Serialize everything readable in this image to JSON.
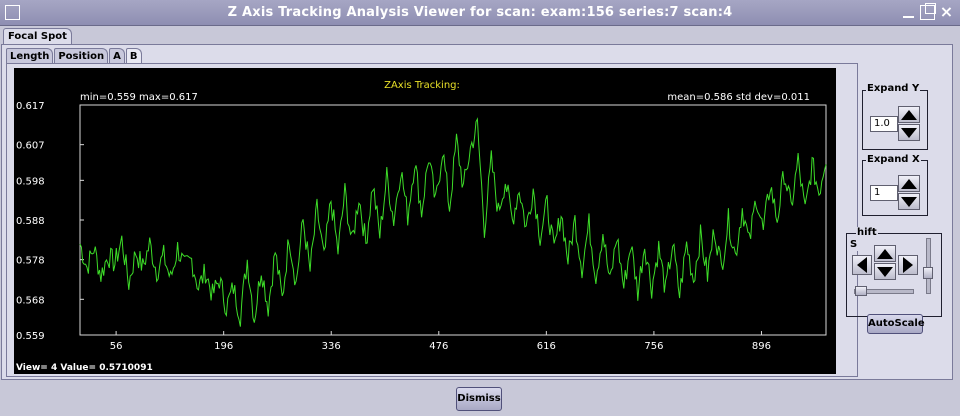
{
  "window": {
    "title": "Z Axis Tracking Analysis Viewer for scan:  exam:156 series:7 scan:4"
  },
  "outer_tabs": [
    {
      "label": "Focal Spot"
    }
  ],
  "inner_tabs": [
    {
      "label": "Length"
    },
    {
      "label": "Position"
    },
    {
      "label": "A"
    },
    {
      "label": "B"
    }
  ],
  "plot": {
    "title": "ZAxis Tracking:",
    "stats_left": "min=0.559 max=0.617",
    "stats_right": "mean=0.586 std dev=0.011",
    "readout": "View= 4  Value= 0.5710091",
    "colors": {
      "background": "#000000",
      "trace": "#3ddc28",
      "title": "#e8e028",
      "text": "#ffffff",
      "frame": "#d8d8d8"
    }
  },
  "controls": {
    "expand_y": {
      "label": "Expand Y",
      "value": "1.0"
    },
    "expand_x": {
      "label": "Expand X",
      "value": "1"
    },
    "shift": {
      "label_top": "hift",
      "label_side": "S"
    },
    "autoscale_label": "AutoScale"
  },
  "dismiss_label": "Dismiss",
  "chart_data": {
    "type": "line",
    "title": "ZAxis Tracking:",
    "xlabel": "",
    "ylabel": "",
    "xlim": [
      9,
      980
    ],
    "ylim": [
      0.559,
      0.617
    ],
    "x_ticks": [
      "56",
      "196",
      "336",
      "476",
      "616",
      "756",
      "896"
    ],
    "y_ticks": [
      "0.617",
      "0.607",
      "0.598",
      "0.588",
      "0.578",
      "0.568",
      "0.559"
    ],
    "y_tick_values": [
      0.617,
      0.607,
      0.598,
      0.588,
      0.578,
      0.568,
      0.559
    ],
    "grid": false,
    "series": [
      {
        "points_per_sample": 5,
        "x_start": 9,
        "x_step": 5,
        "values": [
          0.582,
          0.576,
          0.581,
          0.574,
          0.579,
          0.577,
          0.583,
          0.572,
          0.58,
          0.576,
          0.582,
          0.575,
          0.579,
          0.573,
          0.581,
          0.576,
          0.578,
          0.571,
          0.575,
          0.569,
          0.573,
          0.566,
          0.571,
          0.564,
          0.578,
          0.563,
          0.576,
          0.566,
          0.58,
          0.568,
          0.584,
          0.572,
          0.588,
          0.575,
          0.591,
          0.578,
          0.593,
          0.58,
          0.595,
          0.582,
          0.594,
          0.582,
          0.597,
          0.584,
          0.599,
          0.588,
          0.601,
          0.589,
          0.603,
          0.59,
          0.604,
          0.592,
          0.606,
          0.591,
          0.608,
          0.596,
          0.606,
          0.612,
          0.586,
          0.603,
          0.59,
          0.598,
          0.588,
          0.596,
          0.586,
          0.596,
          0.584,
          0.592,
          0.58,
          0.59,
          0.578,
          0.588,
          0.576,
          0.587,
          0.574,
          0.585,
          0.572,
          0.584,
          0.571,
          0.582,
          0.57,
          0.582,
          0.571,
          0.581,
          0.57,
          0.582,
          0.569,
          0.582,
          0.573,
          0.584,
          0.574,
          0.586,
          0.576,
          0.588,
          0.579,
          0.591,
          0.582,
          0.594,
          0.585,
          0.597,
          0.588,
          0.6,
          0.591,
          0.603,
          0.59,
          0.602,
          0.595,
          0.604
        ]
      }
    ]
  }
}
